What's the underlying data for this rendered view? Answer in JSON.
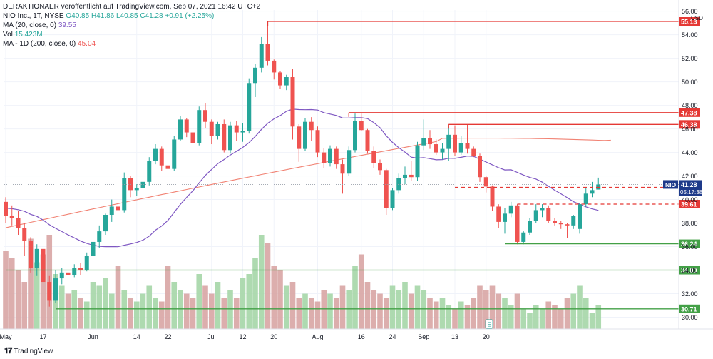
{
  "header": {
    "attribution": "DERAKTIONAER veröffentlicht auf TradingView.com, Sep 07, 2021 16:42 UTC+2"
  },
  "legend": {
    "symbol": "NIO Inc., 1T, NYSE",
    "ohlc": "O40.85 H41.86 L40.85 C41.28 +0.91 (+2.25%)",
    "ma20_label": "MA (20, close, 0)",
    "ma20_value": "39.55",
    "vol_label": "Vol",
    "vol_value": "15.423M",
    "ma200_label": "MA - 1D (200, close, 0)",
    "ma200_value": "45.04"
  },
  "footer": {
    "brand": "TradingView"
  },
  "colors": {
    "up": "#26a69a",
    "down": "#ef5350",
    "ma20": "#7e57c2",
    "ma200": "#ef6c5a",
    "resistance": "#e53935",
    "support": "#43a047",
    "price_tag": "#1e3a8a"
  },
  "chart_data": {
    "type": "candlestick",
    "currency": "USD",
    "y_ticks": [
      30,
      32,
      34,
      36,
      38,
      40,
      42,
      44,
      46,
      48,
      50,
      52,
      54,
      56
    ],
    "y_tick_labels": [
      "30.00",
      "32.00",
      "34.00",
      "36.00",
      "38.00",
      "40.00",
      "42.00",
      "44.00",
      "46.00",
      "48.00",
      "50.00",
      "52.00",
      "54.00",
      "56.00"
    ],
    "ylim": [
      29,
      56.1
    ],
    "x_ticks": [
      {
        "index": 0,
        "label": "May"
      },
      {
        "index": 6,
        "label": "17"
      },
      {
        "index": 14,
        "label": "Jun"
      },
      {
        "index": 21,
        "label": "14"
      },
      {
        "index": 26,
        "label": "22"
      },
      {
        "index": 33,
        "label": "Jul"
      },
      {
        "index": 38,
        "label": "12"
      },
      {
        "index": 43,
        "label": "20"
      },
      {
        "index": 50,
        "label": "Aug"
      },
      {
        "index": 57,
        "label": "16"
      },
      {
        "index": 62,
        "label": "24"
      },
      {
        "index": 67,
        "label": "Sep"
      },
      {
        "index": 72,
        "label": "13"
      },
      {
        "index": 77,
        "label": "20"
      }
    ],
    "candles": [
      {
        "o": 39.8,
        "h": 40.2,
        "l": 38.0,
        "c": 38.6
      },
      {
        "o": 38.6,
        "h": 39.5,
        "l": 37.8,
        "c": 38.4
      },
      {
        "o": 38.4,
        "h": 39.0,
        "l": 37.0,
        "c": 37.6
      },
      {
        "o": 37.6,
        "h": 38.0,
        "l": 35.2,
        "c": 36.5
      },
      {
        "o": 36.5,
        "h": 36.8,
        "l": 33.8,
        "c": 34.2
      },
      {
        "o": 34.2,
        "h": 36.2,
        "l": 33.5,
        "c": 35.8
      },
      {
        "o": 35.8,
        "h": 36.0,
        "l": 32.5,
        "c": 33.0
      },
      {
        "o": 33.0,
        "h": 33.5,
        "l": 30.9,
        "c": 31.4
      },
      {
        "o": 31.4,
        "h": 34.0,
        "l": 31.2,
        "c": 33.3
      },
      {
        "o": 33.3,
        "h": 34.2,
        "l": 32.8,
        "c": 33.8
      },
      {
        "o": 33.8,
        "h": 34.4,
        "l": 33.1,
        "c": 33.6
      },
      {
        "o": 33.6,
        "h": 34.5,
        "l": 33.4,
        "c": 34.2
      },
      {
        "o": 34.2,
        "h": 34.6,
        "l": 33.6,
        "c": 34.0
      },
      {
        "o": 34.0,
        "h": 35.5,
        "l": 33.9,
        "c": 35.2
      },
      {
        "o": 35.2,
        "h": 36.9,
        "l": 33.8,
        "c": 36.4
      },
      {
        "o": 36.4,
        "h": 37.8,
        "l": 35.9,
        "c": 37.3
      },
      {
        "o": 37.3,
        "h": 38.8,
        "l": 37.0,
        "c": 38.7
      },
      {
        "o": 38.7,
        "h": 40.0,
        "l": 38.1,
        "c": 39.4
      },
      {
        "o": 39.4,
        "h": 39.6,
        "l": 38.9,
        "c": 39.1
      },
      {
        "o": 39.1,
        "h": 42.3,
        "l": 38.9,
        "c": 41.8
      },
      {
        "o": 41.8,
        "h": 42.0,
        "l": 40.2,
        "c": 40.8
      },
      {
        "o": 40.8,
        "h": 41.3,
        "l": 40.3,
        "c": 41.0
      },
      {
        "o": 41.0,
        "h": 41.8,
        "l": 40.7,
        "c": 41.5
      },
      {
        "o": 41.5,
        "h": 43.6,
        "l": 41.2,
        "c": 43.3
      },
      {
        "o": 43.3,
        "h": 44.7,
        "l": 43.0,
        "c": 44.3
      },
      {
        "o": 44.3,
        "h": 44.5,
        "l": 42.4,
        "c": 42.9
      },
      {
        "o": 42.9,
        "h": 43.2,
        "l": 42.3,
        "c": 42.6
      },
      {
        "o": 42.6,
        "h": 45.4,
        "l": 42.4,
        "c": 45.1
      },
      {
        "o": 45.1,
        "h": 47.1,
        "l": 45.0,
        "c": 46.8
      },
      {
        "o": 46.8,
        "h": 46.9,
        "l": 45.3,
        "c": 45.7
      },
      {
        "o": 45.7,
        "h": 45.9,
        "l": 44.0,
        "c": 44.8
      },
      {
        "o": 44.8,
        "h": 47.9,
        "l": 44.6,
        "c": 47.6
      },
      {
        "o": 47.6,
        "h": 48.2,
        "l": 46.1,
        "c": 46.6
      },
      {
        "o": 46.6,
        "h": 46.8,
        "l": 44.7,
        "c": 45.4
      },
      {
        "o": 45.4,
        "h": 46.6,
        "l": 45.1,
        "c": 46.4
      },
      {
        "o": 46.4,
        "h": 46.8,
        "l": 44.0,
        "c": 44.2
      },
      {
        "o": 44.2,
        "h": 46.6,
        "l": 43.9,
        "c": 46.3
      },
      {
        "o": 46.3,
        "h": 46.7,
        "l": 45.0,
        "c": 45.7
      },
      {
        "o": 45.7,
        "h": 46.5,
        "l": 44.9,
        "c": 45.8
      },
      {
        "o": 45.8,
        "h": 50.3,
        "l": 45.6,
        "c": 49.9
      },
      {
        "o": 49.9,
        "h": 51.5,
        "l": 48.7,
        "c": 51.2
      },
      {
        "o": 51.2,
        "h": 53.8,
        "l": 50.8,
        "c": 53.2
      },
      {
        "o": 53.2,
        "h": 55.0,
        "l": 51.4,
        "c": 51.8
      },
      {
        "o": 51.8,
        "h": 51.9,
        "l": 50.2,
        "c": 50.8
      },
      {
        "o": 50.8,
        "h": 50.9,
        "l": 49.4,
        "c": 49.7
      },
      {
        "o": 49.7,
        "h": 50.6,
        "l": 49.3,
        "c": 50.4
      },
      {
        "o": 50.4,
        "h": 51.1,
        "l": 45.1,
        "c": 46.2
      },
      {
        "o": 46.2,
        "h": 46.4,
        "l": 43.2,
        "c": 44.3
      },
      {
        "o": 44.3,
        "h": 46.9,
        "l": 44.1,
        "c": 46.6
      },
      {
        "o": 46.6,
        "h": 47.0,
        "l": 45.0,
        "c": 45.9
      },
      {
        "o": 45.9,
        "h": 46.2,
        "l": 43.6,
        "c": 44.0
      },
      {
        "o": 44.0,
        "h": 44.4,
        "l": 42.7,
        "c": 43.1
      },
      {
        "o": 43.1,
        "h": 44.6,
        "l": 42.8,
        "c": 44.3
      },
      {
        "o": 44.3,
        "h": 44.5,
        "l": 42.6,
        "c": 43.0
      },
      {
        "o": 43.0,
        "h": 43.4,
        "l": 40.5,
        "c": 42.2
      },
      {
        "o": 42.2,
        "h": 44.5,
        "l": 42.0,
        "c": 44.2
      },
      {
        "o": 44.2,
        "h": 47.3,
        "l": 44.0,
        "c": 46.7
      },
      {
        "o": 46.7,
        "h": 47.3,
        "l": 45.8,
        "c": 45.9
      },
      {
        "o": 45.9,
        "h": 46.0,
        "l": 43.9,
        "c": 44.1
      },
      {
        "o": 44.1,
        "h": 44.5,
        "l": 42.7,
        "c": 43.1
      },
      {
        "o": 43.1,
        "h": 43.4,
        "l": 42.1,
        "c": 42.5
      },
      {
        "o": 42.5,
        "h": 42.6,
        "l": 38.7,
        "c": 39.3
      },
      {
        "o": 39.3,
        "h": 41.0,
        "l": 39.1,
        "c": 40.8
      },
      {
        "o": 40.8,
        "h": 42.2,
        "l": 40.5,
        "c": 41.8
      },
      {
        "o": 41.8,
        "h": 42.8,
        "l": 41.3,
        "c": 42.1
      },
      {
        "o": 42.1,
        "h": 43.3,
        "l": 41.6,
        "c": 41.9
      },
      {
        "o": 41.9,
        "h": 44.9,
        "l": 41.6,
        "c": 44.6
      },
      {
        "o": 44.6,
        "h": 46.8,
        "l": 44.2,
        "c": 45.2
      },
      {
        "o": 45.2,
        "h": 45.9,
        "l": 44.3,
        "c": 44.7
      },
      {
        "o": 44.7,
        "h": 45.1,
        "l": 43.8,
        "c": 44.0
      },
      {
        "o": 44.0,
        "h": 44.8,
        "l": 43.4,
        "c": 44.3
      },
      {
        "o": 44.3,
        "h": 46.2,
        "l": 43.3,
        "c": 45.5
      },
      {
        "o": 45.5,
        "h": 46.3,
        "l": 43.7,
        "c": 44.0
      },
      {
        "o": 44.0,
        "h": 45.4,
        "l": 43.8,
        "c": 44.8
      },
      {
        "o": 44.8,
        "h": 46.4,
        "l": 43.9,
        "c": 44.3
      },
      {
        "o": 44.3,
        "h": 44.5,
        "l": 43.6,
        "c": 43.7
      },
      {
        "o": 43.7,
        "h": 43.9,
        "l": 41.5,
        "c": 41.9
      },
      {
        "o": 41.9,
        "h": 42.0,
        "l": 40.6,
        "c": 41.1
      },
      {
        "o": 41.1,
        "h": 41.2,
        "l": 39.0,
        "c": 39.4
      },
      {
        "o": 39.4,
        "h": 39.6,
        "l": 37.6,
        "c": 38.1
      },
      {
        "o": 38.1,
        "h": 39.3,
        "l": 37.1,
        "c": 38.8
      },
      {
        "o": 38.8,
        "h": 39.8,
        "l": 38.5,
        "c": 39.5
      },
      {
        "o": 39.5,
        "h": 39.6,
        "l": 36.2,
        "c": 36.4
      },
      {
        "o": 36.4,
        "h": 37.3,
        "l": 36.2,
        "c": 37.2
      },
      {
        "o": 37.2,
        "h": 38.4,
        "l": 37.0,
        "c": 38.2
      },
      {
        "o": 38.2,
        "h": 39.6,
        "l": 38.0,
        "c": 39.1
      },
      {
        "o": 39.1,
        "h": 39.6,
        "l": 38.5,
        "c": 39.3
      },
      {
        "o": 39.3,
        "h": 39.5,
        "l": 38.0,
        "c": 38.2
      },
      {
        "o": 38.2,
        "h": 38.4,
        "l": 37.8,
        "c": 38.0
      },
      {
        "o": 38.0,
        "h": 38.2,
        "l": 37.5,
        "c": 37.9
      },
      {
        "o": 37.9,
        "h": 38.0,
        "l": 36.7,
        "c": 37.8
      },
      {
        "o": 37.8,
        "h": 38.7,
        "l": 37.5,
        "c": 38.6
      },
      {
        "o": 37.5,
        "h": 39.7,
        "l": 37.1,
        "c": 39.6
      },
      {
        "o": 39.6,
        "h": 41.0,
        "l": 39.4,
        "c": 40.5
      },
      {
        "o": 40.5,
        "h": 41.5,
        "l": 40.2,
        "c": 40.8
      },
      {
        "o": 40.85,
        "h": 41.86,
        "l": 40.85,
        "c": 41.28
      }
    ],
    "volume_relative": [
      1.0,
      0.9,
      0.75,
      0.6,
      1.15,
      0.85,
      0.95,
      1.2,
      0.7,
      0.55,
      0.45,
      0.5,
      0.4,
      0.35,
      0.6,
      0.55,
      0.65,
      0.45,
      0.8,
      0.5,
      0.4,
      0.35,
      0.45,
      0.55,
      0.4,
      0.35,
      0.8,
      0.6,
      0.5,
      0.45,
      0.4,
      0.7,
      0.55,
      0.45,
      0.6,
      0.4,
      0.5,
      0.4,
      0.65,
      0.7,
      0.9,
      1.2,
      1.1,
      0.8,
      0.75,
      0.55,
      0.6,
      0.4,
      0.45,
      0.4,
      0.35,
      0.5,
      0.45,
      0.4,
      0.55,
      0.5,
      0.8,
      0.95,
      0.6,
      0.5,
      0.45,
      0.4,
      0.55,
      0.5,
      0.6,
      0.45,
      0.55,
      0.5,
      0.4,
      0.35,
      0.4,
      0.3,
      0.25,
      0.35,
      0.3,
      0.4,
      0.55,
      0.5,
      0.55,
      0.45,
      0.4,
      0.3,
      0.45,
      0.25,
      0.2,
      0.3,
      0.25,
      0.35,
      0.3,
      0.25,
      0.4,
      0.45,
      0.55,
      0.4,
      0.2
    ],
    "levels": [
      {
        "value": 55.13,
        "label": "55.13",
        "kind": "resistance",
        "start": 42
      },
      {
        "value": 47.38,
        "label": "47.38",
        "kind": "resistance",
        "start": 55
      },
      {
        "value": 46.38,
        "label": "46.38",
        "kind": "resistance",
        "start": 71
      },
      {
        "value": 41.03,
        "label": "41.03",
        "kind": "resistance-dashed",
        "start": 72
      },
      {
        "value": 39.61,
        "label": "39.61",
        "kind": "resistance-dashed",
        "start": 82
      },
      {
        "value": 36.24,
        "label": "36.24",
        "kind": "support",
        "start": 80
      },
      {
        "value": 34.0,
        "label": "34.00",
        "kind": "support",
        "start": 0
      },
      {
        "value": 30.71,
        "label": "30.71",
        "kind": "support",
        "start": 8
      }
    ],
    "last_price": {
      "symbol": "NIO",
      "value": 41.28,
      "label": "41.28",
      "countdown": "05:17:38"
    },
    "ma20": {
      "name": "MA (20, close, 0)",
      "start_value": 39.3,
      "end_value": 39.55
    },
    "ma200": {
      "name": "MA - 1D (200, close, 0)",
      "start_value": 37.6,
      "end_value": 45.04
    },
    "event_marker": "E"
  }
}
